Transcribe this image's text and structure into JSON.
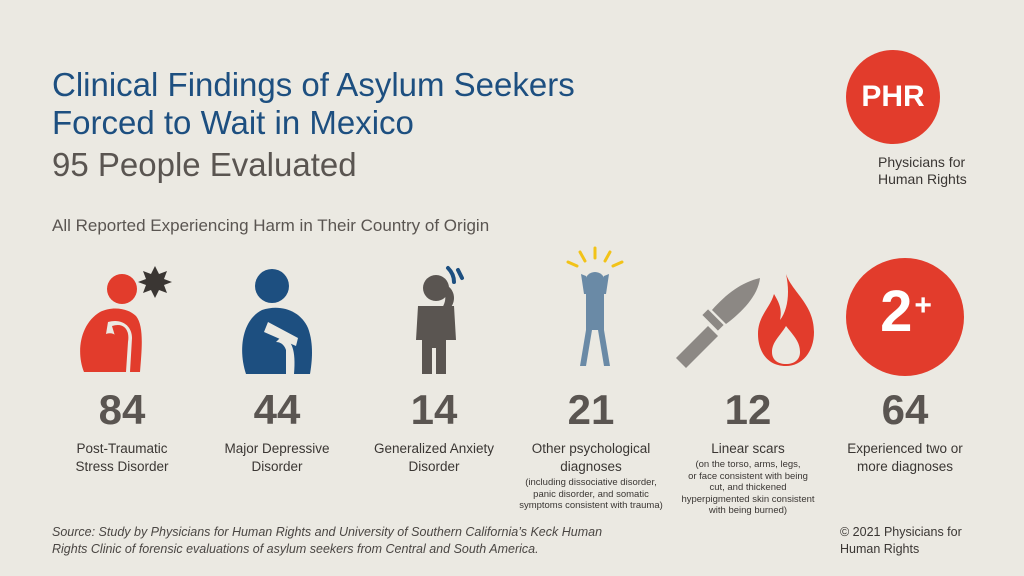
{
  "header": {
    "title_line1": "Clinical Findings of Asylum Seekers",
    "title_line2": "Forced to Wait in Mexico",
    "subtitle": "95 People Evaluated",
    "lead": "All Reported Experiencing Harm in Their Country of Origin"
  },
  "logo": {
    "mark": "PHR",
    "name_line1": "Physicians for",
    "name_line2": "Human Rights"
  },
  "stats": [
    {
      "number": "84",
      "label_line1": "Post-Traumatic",
      "label_line2": "Stress Disorder",
      "note": ""
    },
    {
      "number": "44",
      "label_line1": "Major Depressive",
      "label_line2": "Disorder",
      "note": ""
    },
    {
      "number": "14",
      "label_line1": "Generalized Anxiety",
      "label_line2": "Disorder",
      "note": ""
    },
    {
      "number": "21",
      "label_line1": "Other psychological",
      "label_line2": "diagnoses",
      "note_line1": "(including dissociative disorder,",
      "note_line2": "panic disorder, and somatic",
      "note_line3": "symptoms consistent with trauma)"
    },
    {
      "number": "12",
      "label_line1": "Linear scars",
      "label_line2": "",
      "note_line1": "(on the torso, arms, legs,",
      "note_line2": "or face consistent with being",
      "note_line3": "cut, and thickened",
      "note_line4": "hyperpigmented skin consistent",
      "note_line5": "with being burned)"
    },
    {
      "number": "64",
      "label_line1": "Experienced two or",
      "label_line2": "more diagnoses",
      "note": ""
    }
  ],
  "badge": {
    "main": "2",
    "plus": "+"
  },
  "footer": {
    "source_line1": "Source: Study by Physicians for Human Rights and University of Southern California’s Keck Human",
    "source_line2": "Rights Clinic of forensic evaluations of asylum seekers from Central and South America.",
    "copyright_line1": "© 2021 Physicians for",
    "copyright_line2": "Human Rights"
  },
  "colors": {
    "background": "#ebe9e2",
    "title_blue": "#1d4f80",
    "accent_red": "#e23c2c",
    "figure_gray": "#5a5551",
    "figure_blue": "#1d4f80",
    "figure_steel": "#6a8aa6",
    "spark_yellow": "#f2c318"
  },
  "icons": [
    "huddled-figure-red-icon",
    "huddled-figure-blue-icon",
    "anxious-figure-icon",
    "stressed-figure-icon",
    "knife-icon",
    "flame-icon",
    "two-plus-badge-icon",
    "phr-logo-icon"
  ]
}
